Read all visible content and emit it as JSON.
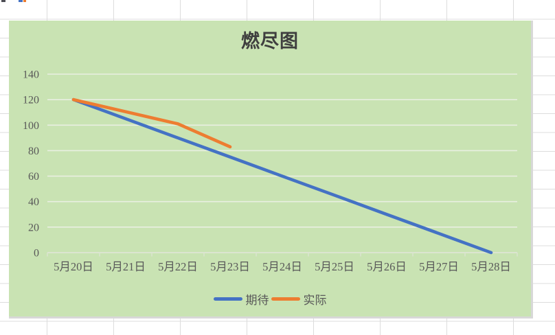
{
  "chart_data": {
    "type": "line",
    "title": "燃尽图",
    "categories": [
      "5月20日",
      "5月21日",
      "5月22日",
      "5月23日",
      "5月24日",
      "5月25日",
      "5月26日",
      "5月27日",
      "5月28日"
    ],
    "series": [
      {
        "name": "期待",
        "color": "#4472c4",
        "values": [
          120,
          105,
          90,
          75,
          60,
          45,
          30,
          15,
          0
        ]
      },
      {
        "name": "实际",
        "color": "#ed7d31",
        "values": [
          120,
          110.5,
          101,
          83,
          null,
          null,
          null,
          null,
          null
        ]
      }
    ],
    "ylim": [
      0,
      140
    ],
    "yticks": [
      0,
      20,
      40,
      60,
      80,
      100,
      120,
      140
    ],
    "grid": true,
    "legend_position": "bottom",
    "colors": {
      "plot_bg": "#c9e3b3",
      "gridline": "#e9efe2",
      "axis_line": "#dce4d1",
      "axis_label": "#595959",
      "title": "#3f3f3f"
    }
  }
}
